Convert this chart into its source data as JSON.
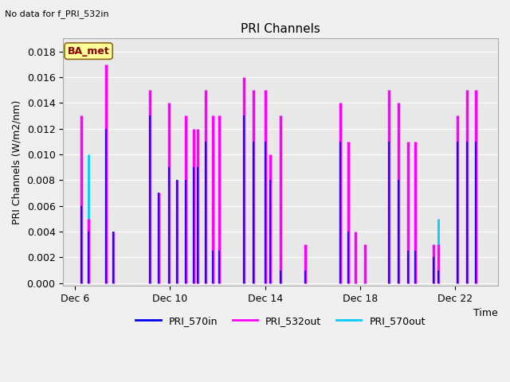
{
  "title": "PRI Channels",
  "subtitle": "No data for f_PRI_532in",
  "ylabel": "PRI Channels (W/m2/nm)",
  "xlabel": "Time",
  "ylim": [
    -0.0002,
    0.019
  ],
  "yticks": [
    0.0,
    0.002,
    0.004,
    0.006,
    0.008,
    0.01,
    0.012,
    0.014,
    0.016,
    0.018
  ],
  "color_570in": "#0000ee",
  "color_532out": "#ff00ff",
  "color_570out": "#00ccff",
  "annotation_text": "BA_met",
  "bg_color": "#e8e8e8",
  "fig_bg": "#f0f0f0",
  "xticks": [
    6,
    10,
    14,
    18,
    22
  ],
  "xlabels": [
    "Dec 6",
    "Dec 10",
    "Dec 14",
    "Dec 18",
    "Dec 22"
  ],
  "xlim": [
    5.5,
    23.8
  ],
  "lw_532": 2.5,
  "lw_570in": 1.2,
  "lw_570out": 2.0,
  "spikes": [
    {
      "x": 6.25,
      "s532": 0.013,
      "s570in": 0.006,
      "s570out": 0.01
    },
    {
      "x": 6.55,
      "s532": 0.005,
      "s570in": 0.004,
      "s570out": 0.01
    },
    {
      "x": 7.3,
      "s532": 0.017,
      "s570in": 0.012,
      "s570out": 0.011
    },
    {
      "x": 7.6,
      "s532": 0.004,
      "s570in": 0.004,
      "s570out": 0.004
    },
    {
      "x": 9.15,
      "s532": 0.015,
      "s570in": 0.013,
      "s570out": 0.011
    },
    {
      "x": 9.5,
      "s532": 0.007,
      "s570in": 0.007,
      "s570out": 0.006
    },
    {
      "x": 9.95,
      "s532": 0.014,
      "s570in": 0.009,
      "s570out": 0.009
    },
    {
      "x": 10.3,
      "s532": 0.008,
      "s570in": 0.008,
      "s570out": 0.008
    },
    {
      "x": 10.65,
      "s532": 0.013,
      "s570in": 0.008,
      "s570out": 0.009
    },
    {
      "x": 11.0,
      "s532": 0.012,
      "s570in": 0.009,
      "s570out": 0.009
    },
    {
      "x": 11.15,
      "s532": 0.012,
      "s570in": 0.009,
      "s570out": 0.009
    },
    {
      "x": 11.5,
      "s532": 0.015,
      "s570in": 0.011,
      "s570out": 0.011
    },
    {
      "x": 11.8,
      "s532": 0.013,
      "s570in": 0.0025,
      "s570out": 0.0025
    },
    {
      "x": 12.05,
      "s532": 0.013,
      "s570in": 0.0025,
      "s570out": 0.0025
    },
    {
      "x": 13.1,
      "s532": 0.016,
      "s570in": 0.013,
      "s570out": 0.011
    },
    {
      "x": 13.5,
      "s532": 0.015,
      "s570in": 0.011,
      "s570out": 0.011
    },
    {
      "x": 14.0,
      "s532": 0.015,
      "s570in": 0.011,
      "s570out": 0.011
    },
    {
      "x": 14.2,
      "s532": 0.01,
      "s570in": 0.008,
      "s570out": 0.008
    },
    {
      "x": 14.65,
      "s532": 0.013,
      "s570in": 0.001,
      "s570out": 0.001
    },
    {
      "x": 15.7,
      "s532": 0.003,
      "s570in": 0.001,
      "s570out": 0.001
    },
    {
      "x": 17.15,
      "s532": 0.014,
      "s570in": 0.011,
      "s570out": 0.011
    },
    {
      "x": 17.5,
      "s532": 0.011,
      "s570in": 0.004,
      "s570out": 0.003
    },
    {
      "x": 17.8,
      "s532": 0.004,
      "s570in": 0.0,
      "s570out": 0.001
    },
    {
      "x": 18.2,
      "s532": 0.003,
      "s570in": 0.0,
      "s570out": 0.001
    },
    {
      "x": 19.2,
      "s532": 0.015,
      "s570in": 0.011,
      "s570out": 0.011
    },
    {
      "x": 19.6,
      "s532": 0.014,
      "s570in": 0.008,
      "s570out": 0.008
    },
    {
      "x": 20.0,
      "s532": 0.011,
      "s570in": 0.0025,
      "s570out": 0.0025
    },
    {
      "x": 20.3,
      "s532": 0.011,
      "s570in": 0.0025,
      "s570out": 0.0025
    },
    {
      "x": 21.1,
      "s532": 0.003,
      "s570in": 0.002,
      "s570out": 0.001
    },
    {
      "x": 21.3,
      "s532": 0.003,
      "s570in": 0.001,
      "s570out": 0.005
    },
    {
      "x": 22.1,
      "s532": 0.013,
      "s570in": 0.011,
      "s570out": 0.011
    },
    {
      "x": 22.5,
      "s532": 0.015,
      "s570in": 0.011,
      "s570out": 0.011
    },
    {
      "x": 22.85,
      "s532": 0.015,
      "s570in": 0.011,
      "s570out": 0.011
    }
  ]
}
